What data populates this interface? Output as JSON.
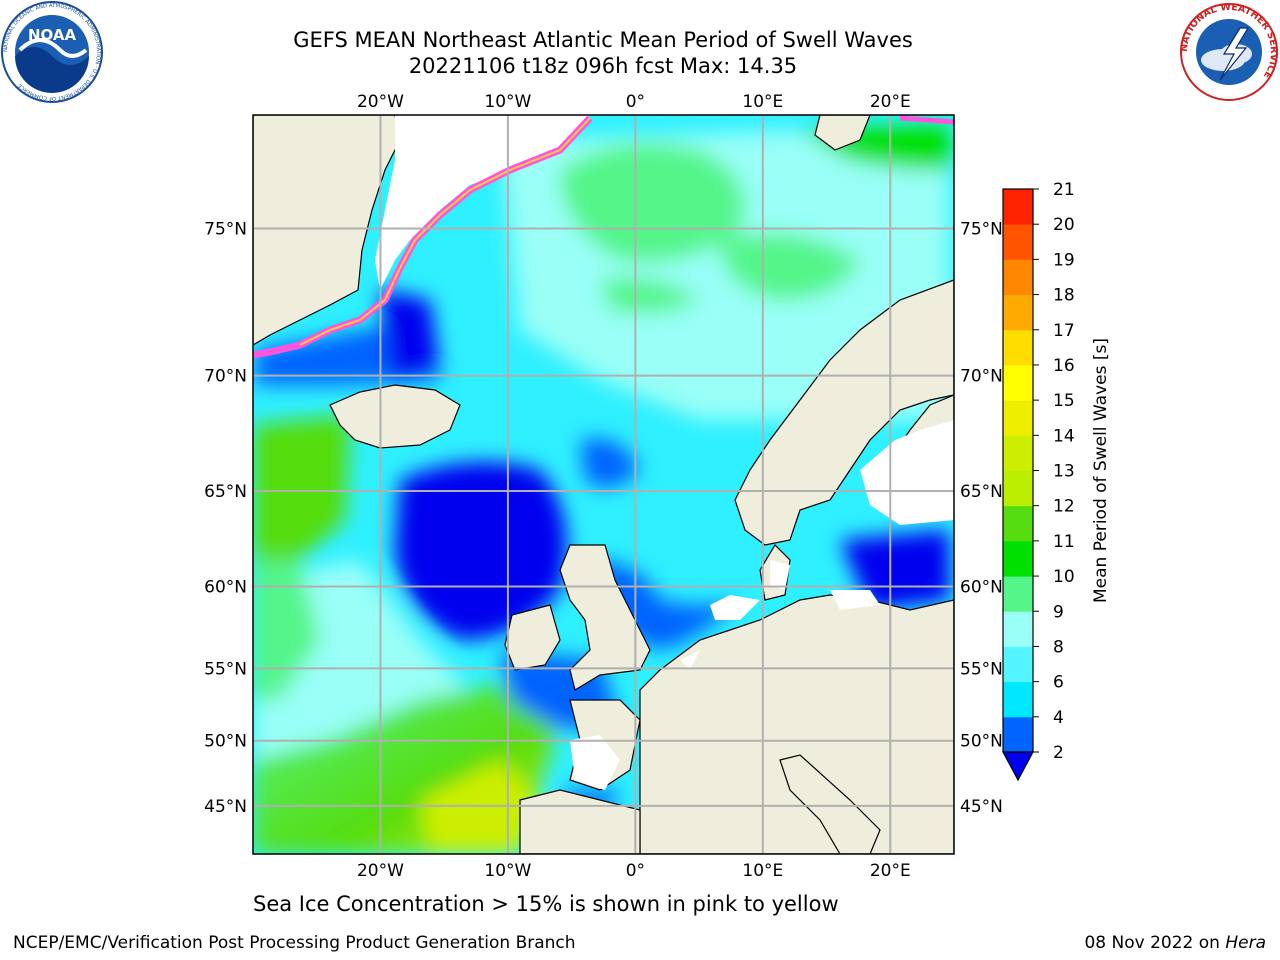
{
  "title": {
    "line1": "GEFS MEAN Northeast Atlantic Mean Period of Swell Waves",
    "line2": "20221106 t18z 096h fcst   Max: 14.35"
  },
  "map": {
    "lon_range": [
      -30,
      25
    ],
    "lat_range": [
      41,
      78
    ],
    "lon_ticks": [
      {
        "value": -20,
        "label": "20°W"
      },
      {
        "value": -10,
        "label": "10°W"
      },
      {
        "value": 0,
        "label": "0°"
      },
      {
        "value": 10,
        "label": "10°E"
      },
      {
        "value": 20,
        "label": "20°E"
      }
    ],
    "lat_ticks": [
      {
        "value": 45,
        "label": "45°N"
      },
      {
        "value": 50,
        "label": "50°N"
      },
      {
        "value": 55,
        "label": "55°N"
      },
      {
        "value": 60,
        "label": "60°N"
      },
      {
        "value": 65,
        "label": "65°N"
      },
      {
        "value": 70,
        "label": "70°N"
      },
      {
        "value": 75,
        "label": "75°N"
      }
    ],
    "grid": true,
    "colors": {
      "land": "#efeddc",
      "ice_edge": "#ff55dd",
      "grid": "#b0b0b0"
    }
  },
  "colorbar": {
    "label": "Mean Period of Swell Waves [s]",
    "ticks": [
      "2",
      "4",
      "6",
      "8",
      "9",
      "10",
      "11",
      "12",
      "13",
      "14",
      "15",
      "16",
      "17",
      "18",
      "19",
      "20",
      "21"
    ],
    "colors": [
      "#0064ff",
      "#00e8ff",
      "#55f5ff",
      "#99fff7",
      "#55f58a",
      "#00e000",
      "#55dd11",
      "#bbee00",
      "#ccee00",
      "#eeee00",
      "#ffff00",
      "#ffdd00",
      "#ffaa00",
      "#ff8800",
      "#ff5500",
      "#ff2200"
    ],
    "under_color": "#0000ee"
  },
  "caption": "Sea Ice Concentration > 15% is shown in pink to yellow",
  "footer": {
    "left": "NCEP/EMC/Verification Post Processing Product Generation Branch",
    "right_date": "08 Nov 2022 on",
    "right_host": "Hera"
  },
  "logos": {
    "noaa_text": "NOAA",
    "noaa_ring": "NATIONAL OCEANIC AND ATMOSPHERIC ADMINISTRATION · U.S. DEPARTMENT OF COMMERCE",
    "nws_ring": "NATIONAL WEATHER SERVICE"
  }
}
